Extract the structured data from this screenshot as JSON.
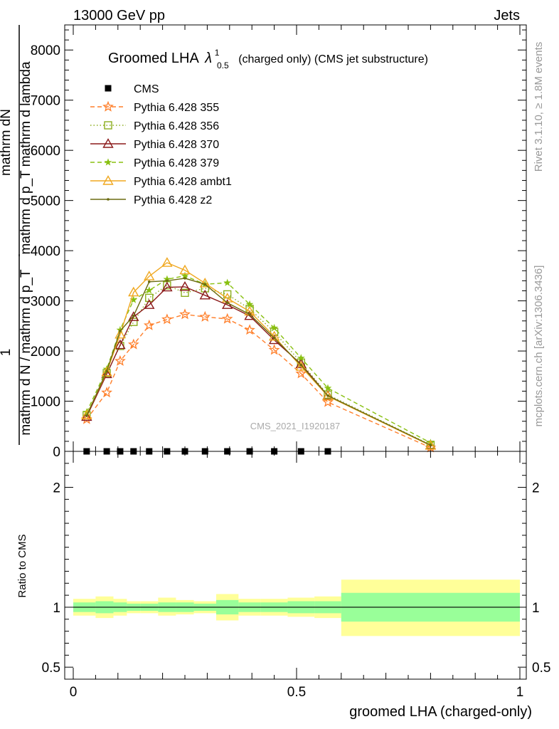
{
  "header": {
    "left": "13000 GeV pp",
    "right": "Jets"
  },
  "side_labels": {
    "rivet": "Rivet 3.1.10, ≥ 1.8M events",
    "mcplots": "mcplots.cern.ch [arXiv:1306.3436]"
  },
  "watermark": "CMS_2021_I1920187",
  "chart_data": [
    {
      "type": "line",
      "title_main": "Groomed LHA",
      "title_lambda": "λ",
      "title_sup": "1",
      "title_sub": "0.5",
      "title_rest": "(charged only) (CMS jet substructure)",
      "ylabel_num": "mathrm dN",
      "ylabel_den": "mathrm d p_T mathrm d lambda",
      "ylabel_den_sub": "T",
      "ylabel_prefix_num": "1",
      "ylabel_prefix_den": "mathrm d N / mathrm d p_T",
      "xlim": [
        0,
        1
      ],
      "ylim": [
        0,
        8500
      ],
      "yticks": [
        0,
        1000,
        2000,
        3000,
        4000,
        5000,
        6000,
        7000,
        8000
      ],
      "ytick_labels": [
        "0",
        "1000",
        "2000",
        "3000",
        "4000",
        "5000",
        "6000",
        "7000",
        "8000"
      ],
      "legend_position": "top-left",
      "series": [
        {
          "name": "CMS",
          "color": "#000000",
          "style": "data",
          "marker": "square",
          "x": [
            0.03,
            0.075,
            0.105,
            0.135,
            0.17,
            0.21,
            0.25,
            0.295,
            0.345,
            0.395,
            0.45,
            0.51,
            0.57
          ],
          "y": [
            0,
            0,
            0,
            0,
            0,
            0,
            0,
            0,
            0,
            0,
            0,
            0,
            0
          ]
        },
        {
          "name": "Pythia 6.428 355",
          "color": "#ff7f2a",
          "style": "dashed",
          "marker": "star",
          "x": [
            0.03,
            0.075,
            0.105,
            0.135,
            0.17,
            0.21,
            0.25,
            0.295,
            0.345,
            0.395,
            0.45,
            0.51,
            0.57,
            0.8
          ],
          "y": [
            640,
            1170,
            1800,
            2130,
            2510,
            2630,
            2730,
            2680,
            2640,
            2420,
            2020,
            1550,
            980,
            75
          ]
        },
        {
          "name": "Pythia 6.428 356",
          "color": "#8cae1e",
          "style": "dotted",
          "marker": "open-square",
          "x": [
            0.03,
            0.075,
            0.105,
            0.135,
            0.17,
            0.21,
            0.25,
            0.295,
            0.345,
            0.395,
            0.45,
            0.51,
            0.57,
            0.8
          ],
          "y": [
            720,
            1560,
            2100,
            2580,
            3060,
            3310,
            3160,
            3250,
            3130,
            2840,
            2380,
            1770,
            1130,
            130
          ]
        },
        {
          "name": "Pythia 6.428 370",
          "color": "#8b1a1a",
          "style": "solid",
          "marker": "open-triangle",
          "x": [
            0.03,
            0.075,
            0.105,
            0.135,
            0.17,
            0.21,
            0.25,
            0.295,
            0.345,
            0.395,
            0.45,
            0.51,
            0.57,
            0.8
          ],
          "y": [
            690,
            1540,
            2120,
            2680,
            2920,
            3270,
            3280,
            3110,
            2920,
            2700,
            2220,
            1740,
            1110,
            120
          ]
        },
        {
          "name": "Pythia 6.428 379",
          "color": "#88c010",
          "style": "dashed",
          "marker": "small-star",
          "x": [
            0.03,
            0.075,
            0.105,
            0.135,
            0.17,
            0.21,
            0.25,
            0.295,
            0.345,
            0.395,
            0.45,
            0.51,
            0.57,
            0.8
          ],
          "y": [
            780,
            1640,
            2420,
            3020,
            3210,
            3430,
            3500,
            3330,
            3360,
            2930,
            2460,
            1860,
            1260,
            170
          ]
        },
        {
          "name": "Pythia 6.428 ambt1",
          "color": "#f0a820",
          "style": "solid",
          "marker": "open-triangle",
          "x": [
            0.03,
            0.075,
            0.105,
            0.135,
            0.17,
            0.21,
            0.25,
            0.295,
            0.345,
            0.395,
            0.45,
            0.51,
            0.57,
            0.8
          ],
          "y": [
            720,
            1580,
            2330,
            3170,
            3490,
            3760,
            3610,
            3350,
            3050,
            2790,
            2290,
            1690,
            1100,
            115
          ]
        },
        {
          "name": "Pythia 6.428 z2",
          "color": "#6b6b10",
          "style": "solid",
          "marker": "dot",
          "x": [
            0.03,
            0.075,
            0.105,
            0.135,
            0.17,
            0.21,
            0.25,
            0.295,
            0.345,
            0.395,
            0.45,
            0.51,
            0.57,
            0.8
          ],
          "y": [
            710,
            1600,
            2400,
            2700,
            3380,
            3400,
            3450,
            3330,
            2960,
            2730,
            2260,
            1720,
            1110,
            125
          ]
        }
      ]
    },
    {
      "type": "area",
      "ylabel": "Ratio to CMS",
      "xlabel": "groomed LHA (charged-only)",
      "xlim": [
        0,
        1
      ],
      "ylim": [
        0.4,
        2.3
      ],
      "yticks": [
        0.5,
        1,
        2
      ],
      "ytick_labels": [
        "0.5",
        "1",
        "2"
      ],
      "xticks": [
        0,
        0.5,
        1
      ],
      "xtick_labels": [
        "0",
        "0.5",
        "1"
      ],
      "bins": [
        {
          "lo": 0.0,
          "hi": 0.05,
          "inner": [
            0.96,
            1.04
          ],
          "outer": [
            0.93,
            1.07
          ]
        },
        {
          "lo": 0.05,
          "hi": 0.09,
          "inner": [
            0.95,
            1.05
          ],
          "outer": [
            0.91,
            1.09
          ]
        },
        {
          "lo": 0.09,
          "hi": 0.12,
          "inner": [
            0.96,
            1.04
          ],
          "outer": [
            0.93,
            1.07
          ]
        },
        {
          "lo": 0.12,
          "hi": 0.15,
          "inner": [
            0.97,
            1.03
          ],
          "outer": [
            0.95,
            1.05
          ]
        },
        {
          "lo": 0.15,
          "hi": 0.19,
          "inner": [
            0.97,
            1.03
          ],
          "outer": [
            0.95,
            1.05
          ]
        },
        {
          "lo": 0.19,
          "hi": 0.23,
          "inner": [
            0.96,
            1.04
          ],
          "outer": [
            0.93,
            1.08
          ]
        },
        {
          "lo": 0.23,
          "hi": 0.27,
          "inner": [
            0.96,
            1.04
          ],
          "outer": [
            0.94,
            1.06
          ]
        },
        {
          "lo": 0.27,
          "hi": 0.32,
          "inner": [
            0.97,
            1.03
          ],
          "outer": [
            0.95,
            1.05
          ]
        },
        {
          "lo": 0.32,
          "hi": 0.37,
          "inner": [
            0.94,
            1.06
          ],
          "outer": [
            0.89,
            1.11
          ]
        },
        {
          "lo": 0.37,
          "hi": 0.42,
          "inner": [
            0.96,
            1.04
          ],
          "outer": [
            0.93,
            1.07
          ]
        },
        {
          "lo": 0.42,
          "hi": 0.48,
          "inner": [
            0.96,
            1.04
          ],
          "outer": [
            0.93,
            1.07
          ]
        },
        {
          "lo": 0.48,
          "hi": 0.54,
          "inner": [
            0.95,
            1.05
          ],
          "outer": [
            0.92,
            1.08
          ]
        },
        {
          "lo": 0.54,
          "hi": 0.6,
          "inner": [
            0.95,
            1.05
          ],
          "outer": [
            0.91,
            1.09
          ]
        },
        {
          "lo": 0.6,
          "hi": 1.0,
          "inner": [
            0.88,
            1.12
          ],
          "outer": [
            0.76,
            1.23
          ]
        }
      ],
      "inner_color": "#99ff99",
      "outer_color": "#ffff99",
      "reference": 1
    }
  ]
}
